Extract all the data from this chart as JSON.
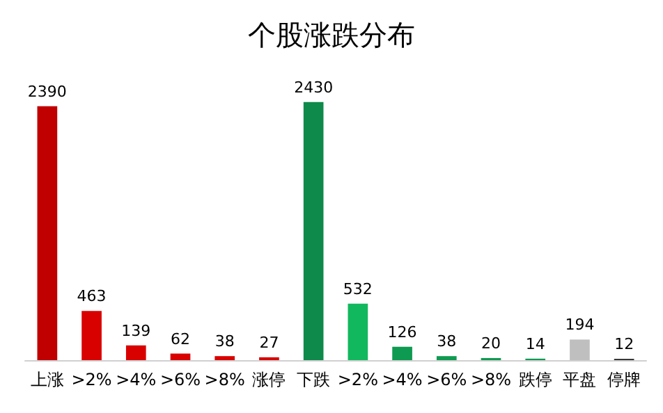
{
  "chart_data": {
    "type": "bar",
    "title": "个股涨跌分布",
    "categories": [
      "上涨",
      ">2%",
      ">4%",
      ">6%",
      ">8%",
      "涨停",
      "下跌",
      ">2%",
      ">4%",
      ">6%",
      ">8%",
      "跌停",
      "平盘",
      "停牌"
    ],
    "values": [
      2390,
      463,
      139,
      62,
      38,
      27,
      2430,
      532,
      126,
      38,
      20,
      14,
      194,
      12
    ],
    "colors": [
      "#c00000",
      "#d90000",
      "#d90000",
      "#d90000",
      "#d90000",
      "#d90000",
      "#0e8a4a",
      "#12b85e",
      "#0e9a50",
      "#0e9a50",
      "#0e9a50",
      "#0e9a50",
      "#bfbfbf",
      "#262626"
    ],
    "data_labels": true
  }
}
